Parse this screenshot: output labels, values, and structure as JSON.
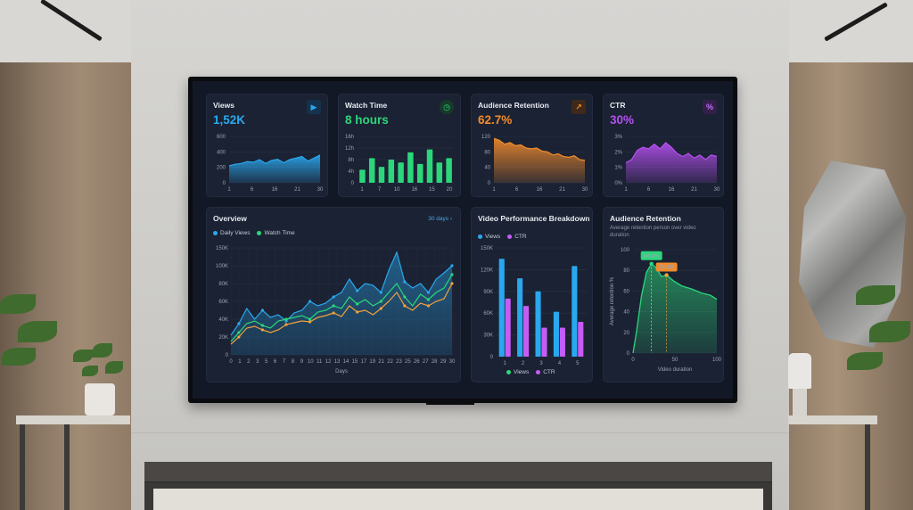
{
  "cards": {
    "views": {
      "title": "Views",
      "value": "1,52K",
      "icon": "play-icon",
      "color": "#2aa8ef",
      "ylabels": [
        "600",
        "400",
        "200",
        "0"
      ],
      "xlabels": [
        "1",
        "6",
        "16",
        "21",
        "30"
      ],
      "series": [
        220,
        240,
        250,
        275,
        265,
        300,
        250,
        290,
        305,
        260,
        300,
        320,
        340,
        280,
        320,
        360
      ]
    },
    "watch_time": {
      "title": "Watch Time",
      "value": "8 hours",
      "icon": "clock-icon",
      "color": "#2bd77a",
      "ylabels": [
        "16h",
        "12h",
        "8h",
        "4h",
        "0"
      ],
      "xlabels": [
        "1",
        "7",
        "10",
        "16",
        "15",
        "20"
      ],
      "bars": [
        4.5,
        8.5,
        5.5,
        8,
        7,
        10.5,
        6.5,
        11.5,
        7,
        8.5
      ]
    },
    "retention": {
      "title": "Audience Retention",
      "value": "62.7%",
      "icon": "trend-arrow-icon",
      "color": "#f28b2c",
      "ylabels": [
        "120",
        "80",
        "40",
        "0"
      ],
      "xlabels": [
        "1",
        "6",
        "16",
        "21",
        "30"
      ],
      "series": [
        115,
        110,
        100,
        104,
        96,
        98,
        90,
        88,
        90,
        82,
        80,
        72,
        75,
        68,
        66,
        70,
        60,
        58
      ]
    },
    "ctr": {
      "title": "CTR",
      "value": "30%",
      "icon": "percent-icon",
      "color": "#b54ff0",
      "ylabels": [
        "3%",
        "2%",
        "1%",
        "0%"
      ],
      "xlabels": [
        "1",
        "6",
        "16",
        "21",
        "30"
      ],
      "series": [
        1.3,
        1.5,
        2.1,
        2.3,
        2.2,
        2.5,
        2.2,
        2.6,
        2.3,
        1.9,
        1.7,
        1.9,
        1.6,
        1.8,
        1.5,
        1.8,
        1.7
      ]
    }
  },
  "overview": {
    "title": "Overview",
    "range_label": "30 days",
    "legend": {
      "views": "Daily Views",
      "watch": "Watch Time"
    },
    "ylabels": [
      "150K",
      "100K",
      "80K",
      "60K",
      "40K",
      "20K",
      "0"
    ],
    "xlabels": [
      "0",
      "1",
      "2",
      "3",
      "5",
      "6",
      "7",
      "8",
      "9",
      "10",
      "11",
      "12",
      "13",
      "14",
      "15",
      "17",
      "19",
      "21",
      "22",
      "23",
      "25",
      "26",
      "27",
      "28",
      "29",
      "30"
    ],
    "xaxis_label": "Days",
    "views_series": [
      22,
      35,
      52,
      40,
      50,
      42,
      45,
      38,
      47,
      50,
      60,
      55,
      58,
      65,
      70,
      85,
      72,
      80,
      78,
      70,
      95,
      115,
      82,
      75,
      80,
      70,
      85,
      92,
      100
    ],
    "watch_series": [
      15,
      25,
      35,
      38,
      33,
      30,
      38,
      40,
      42,
      44,
      40,
      48,
      50,
      55,
      52,
      65,
      57,
      62,
      55,
      60,
      70,
      80,
      65,
      55,
      68,
      62,
      70,
      75,
      90
    ],
    "third_series": [
      12,
      20,
      30,
      32,
      28,
      25,
      28,
      34,
      36,
      38,
      37,
      42,
      44,
      47,
      43,
      55,
      48,
      50,
      45,
      52,
      60,
      70,
      55,
      50,
      58,
      55,
      60,
      63,
      80
    ]
  },
  "breakdown": {
    "title": "Video Performance Breakdown",
    "legend": {
      "views": "Views",
      "ctr": "CTR"
    },
    "ylabels": [
      "150K",
      "120K",
      "90K",
      "60K",
      "30K",
      "0"
    ],
    "categories": [
      "1",
      "2",
      "3",
      "4",
      "5"
    ],
    "views_values": [
      135,
      108,
      90,
      62,
      125
    ],
    "ctr_values": [
      80,
      70,
      40,
      40,
      48
    ],
    "bottom_legend": {
      "views": "Views",
      "ctr": "CTR"
    }
  },
  "audience_retention": {
    "title": "Audience Retention",
    "subtitle": "Average retention person over video duration",
    "ylabel": "Average retention %",
    "ylabels": [
      "100",
      "80",
      "60",
      "40",
      "20",
      "0"
    ],
    "xlabels": [
      "0",
      "50",
      "100"
    ],
    "xaxis_label": "Video duration",
    "peak_label": "86.4%",
    "mark_label": "75.4%"
  }
}
